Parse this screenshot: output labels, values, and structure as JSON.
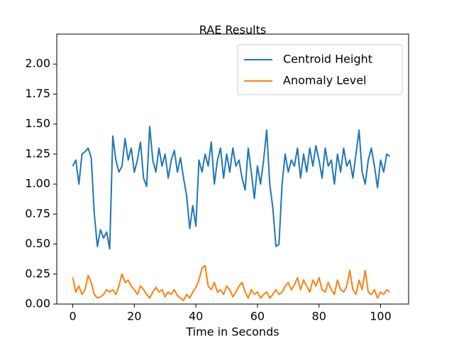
{
  "chart_data": {
    "type": "line",
    "title": "RAE Results",
    "x_label": "Time in Seconds",
    "x": [
      0,
      1,
      2,
      3,
      4,
      5,
      6,
      7,
      8,
      9,
      10,
      11,
      12,
      13,
      14,
      15,
      16,
      17,
      18,
      19,
      20,
      21,
      22,
      23,
      24,
      25,
      26,
      27,
      28,
      29,
      30,
      31,
      32,
      33,
      34,
      35,
      36,
      37,
      38,
      39,
      40,
      41,
      42,
      43,
      44,
      45,
      46,
      47,
      48,
      49,
      50,
      51,
      52,
      53,
      54,
      55,
      56,
      57,
      58,
      59,
      60,
      61,
      62,
      63,
      64,
      65,
      66,
      67,
      68,
      69,
      70,
      71,
      72,
      73,
      74,
      75,
      76,
      77,
      78,
      79,
      80,
      81,
      82,
      83,
      84,
      85,
      86,
      87,
      88,
      89,
      90,
      91,
      92,
      93,
      94,
      95,
      96,
      97,
      98,
      99,
      100,
      101,
      102,
      103
    ],
    "series": [
      {
        "name": "Centroid Height",
        "color": "#1f77b4",
        "values": [
          1.15,
          1.2,
          1.0,
          1.25,
          1.27,
          1.3,
          1.22,
          0.75,
          0.48,
          0.62,
          0.55,
          0.6,
          0.46,
          1.4,
          1.2,
          1.1,
          1.15,
          1.38,
          1.2,
          1.3,
          1.1,
          1.2,
          1.35,
          1.05,
          0.98,
          1.48,
          1.2,
          1.1,
          1.3,
          1.15,
          1.25,
          1.05,
          1.2,
          1.28,
          1.1,
          1.22,
          1.05,
          0.9,
          0.63,
          0.82,
          0.65,
          1.2,
          1.1,
          1.25,
          1.15,
          1.35,
          1.0,
          1.2,
          1.3,
          1.05,
          1.25,
          1.1,
          1.3,
          1.15,
          1.2,
          1.05,
          0.95,
          1.3,
          1.1,
          0.88,
          1.15,
          1.0,
          1.2,
          1.45,
          1.0,
          0.8,
          0.48,
          0.5,
          1.0,
          1.25,
          1.1,
          1.2,
          1.15,
          1.3,
          1.05,
          1.25,
          1.1,
          1.3,
          1.15,
          1.32,
          1.2,
          1.05,
          1.3,
          1.15,
          1.2,
          1.0,
          1.25,
          1.1,
          1.3,
          1.15,
          1.2,
          1.05,
          1.25,
          1.45,
          1.1,
          1.0,
          1.2,
          1.3,
          1.15,
          0.97,
          1.2,
          1.1,
          1.25,
          1.23
        ]
      },
      {
        "name": "Anomaly Level",
        "color": "#ff7f0e",
        "values": [
          0.22,
          0.1,
          0.15,
          0.08,
          0.12,
          0.24,
          0.18,
          0.08,
          0.05,
          0.06,
          0.08,
          0.12,
          0.1,
          0.12,
          0.08,
          0.15,
          0.25,
          0.18,
          0.2,
          0.15,
          0.12,
          0.08,
          0.15,
          0.12,
          0.08,
          0.05,
          0.1,
          0.14,
          0.1,
          0.12,
          0.06,
          0.1,
          0.08,
          0.12,
          0.07,
          0.05,
          0.03,
          0.08,
          0.05,
          0.1,
          0.14,
          0.2,
          0.3,
          0.32,
          0.15,
          0.12,
          0.18,
          0.1,
          0.12,
          0.08,
          0.15,
          0.12,
          0.06,
          0.1,
          0.15,
          0.18,
          0.1,
          0.05,
          0.12,
          0.08,
          0.1,
          0.05,
          0.08,
          0.1,
          0.05,
          0.08,
          0.12,
          0.08,
          0.1,
          0.15,
          0.18,
          0.12,
          0.16,
          0.22,
          0.12,
          0.2,
          0.15,
          0.1,
          0.2,
          0.15,
          0.22,
          0.12,
          0.1,
          0.18,
          0.12,
          0.08,
          0.2,
          0.12,
          0.1,
          0.15,
          0.28,
          0.12,
          0.08,
          0.2,
          0.12,
          0.28,
          0.1,
          0.08,
          0.12,
          0.05,
          0.1,
          0.08,
          0.12,
          0.1
        ]
      }
    ],
    "xlim": [
      -5.2,
      109.1
    ],
    "xticks": [
      0,
      20,
      40,
      60,
      80,
      100
    ],
    "ylim": [
      0,
      2.25
    ],
    "yticks": [
      {
        "value": 0,
        "label": "0.00"
      },
      0.25,
      {
        "value": 0.5,
        "label": "0.50"
      },
      0.75,
      {
        "value": 1,
        "label": "1.00"
      },
      1.25,
      {
        "value": 1.5,
        "label": "1.50"
      },
      1.75,
      {
        "value": 2,
        "label": "2.00"
      }
    ],
    "legend": "upper right"
  }
}
